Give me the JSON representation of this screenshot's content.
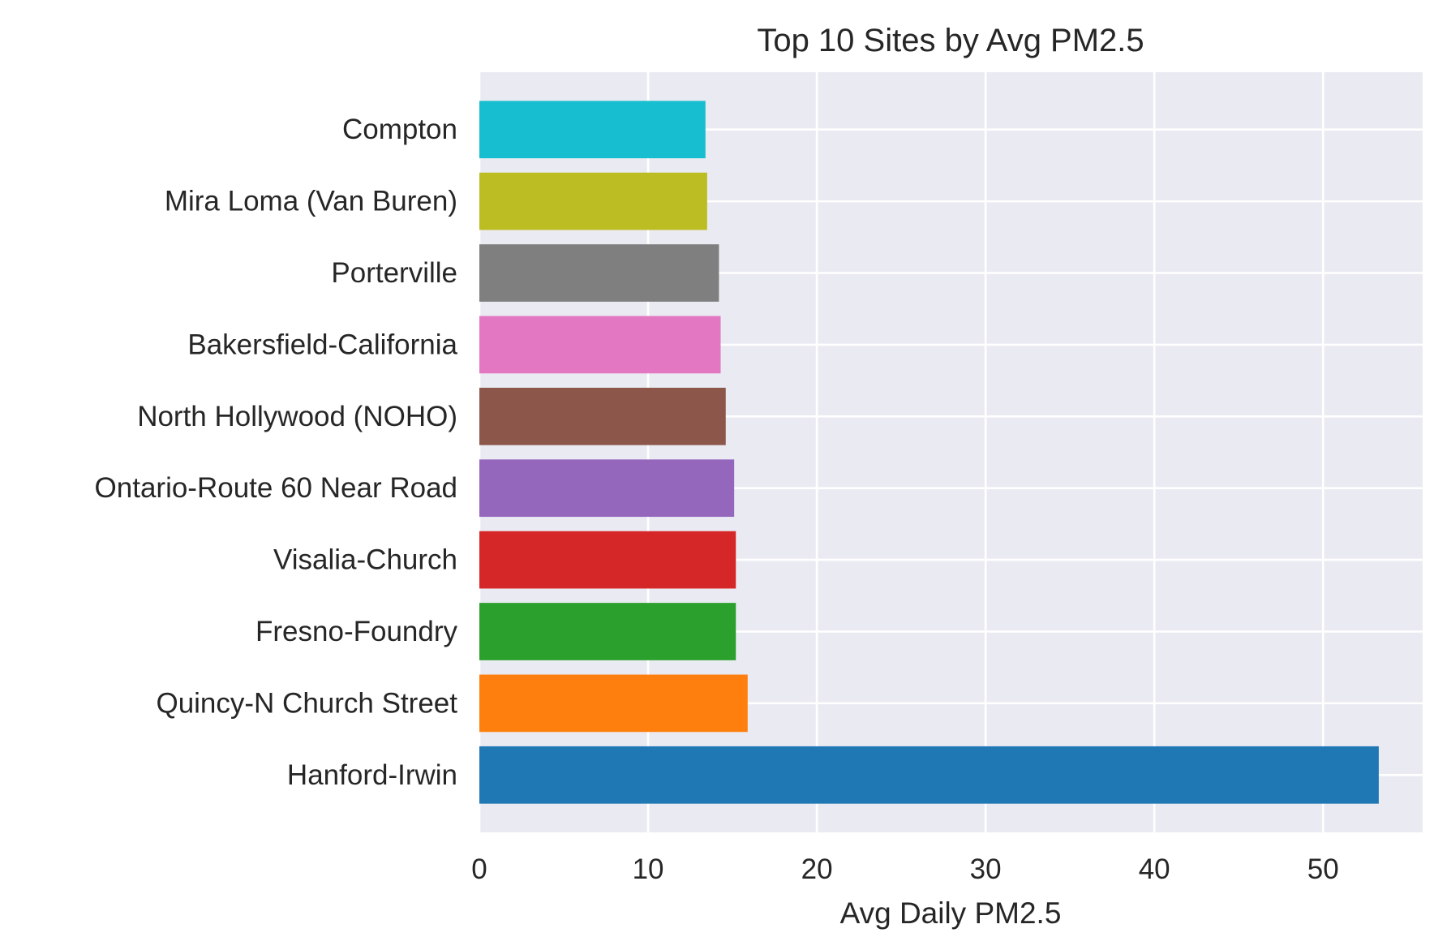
{
  "chart_data": {
    "type": "bar",
    "orientation": "horizontal",
    "title": "Top 10 Sites by Avg PM2.5",
    "xlabel": "Avg Daily PM2.5",
    "ylabel": "",
    "categories": [
      "Hanford-Irwin",
      "Quincy-N Church Street",
      "Fresno-Foundry",
      "Visalia-Church",
      "Ontario-Route 60 Near Road",
      "North Hollywood (NOHO)",
      "Bakersfield-California",
      "Porterville",
      "Mira Loma (Van Buren)",
      "Compton"
    ],
    "values": [
      53.3,
      15.9,
      15.2,
      15.2,
      15.1,
      14.6,
      14.3,
      14.2,
      13.5,
      13.4
    ],
    "colors": [
      "#1f77b4",
      "#ff7f0e",
      "#2ca02c",
      "#d62728",
      "#9467bd",
      "#8c564b",
      "#e377c2",
      "#7f7f7f",
      "#bcbd22",
      "#17becf"
    ],
    "xlim": [
      0,
      55.9
    ],
    "xticks": [
      0,
      10,
      20,
      30,
      40,
      50
    ],
    "grid": true,
    "background_color": "#eaeaf2",
    "grid_color": "#ffffff",
    "text_color": "#262626"
  }
}
